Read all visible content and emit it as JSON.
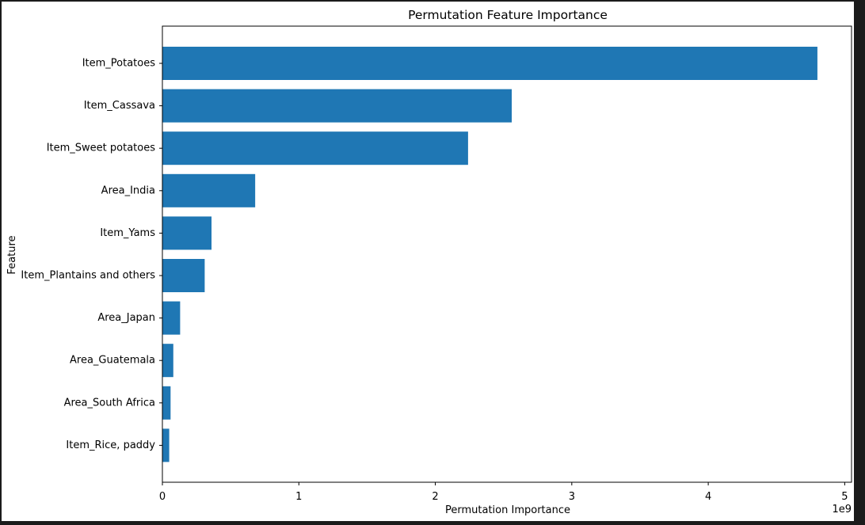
{
  "chart_data": {
    "type": "bar",
    "orientation": "horizontal",
    "title": "Permutation Feature Importance",
    "xlabel": "Permutation Importance",
    "ylabel": "Feature",
    "x_offset_label": "1e9",
    "xlim": [
      0,
      5.05
    ],
    "x_scale_multiplier": 1000000000,
    "xticks": [
      0,
      1,
      2,
      3,
      4,
      5
    ],
    "xtick_labels": [
      "0",
      "1",
      "2",
      "3",
      "4",
      "5"
    ],
    "categories": [
      "Item_Potatoes",
      "Item_Cassava",
      "Item_Sweet potatoes",
      "Area_India",
      "Item_Yams",
      "Item_Plantains and others",
      "Area_Japan",
      "Area_Guatemala",
      "Area_South Africa",
      "Item_Rice, paddy"
    ],
    "values": [
      4.8,
      2.56,
      2.24,
      0.68,
      0.36,
      0.31,
      0.13,
      0.08,
      0.06,
      0.05
    ],
    "bar_color": "#1f77b4",
    "grid": false,
    "legend": "none"
  }
}
